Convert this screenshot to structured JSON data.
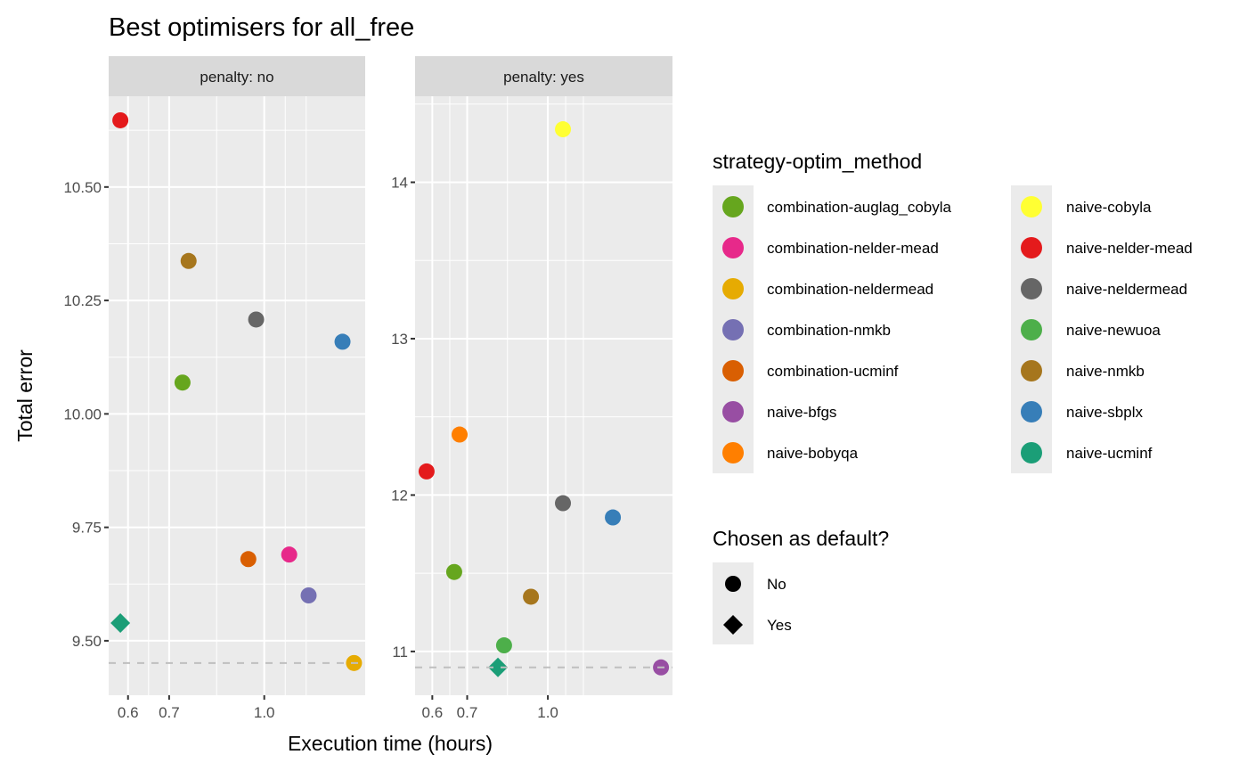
{
  "chart_data": {
    "type": "scatter",
    "title": "Best optimisers for all_free",
    "xlabel": "Execution time (hours)",
    "ylabel": "Total error",
    "x_scale": "log",
    "grid": true,
    "legend_placement": "right",
    "facets": [
      {
        "label": "penalty: no",
        "xlim": [
          0.558,
          1.46
        ],
        "ylim": [
          9.38,
          10.7
        ],
        "x_ticks": [
          "0.6",
          "0.7",
          "1.0"
        ],
        "x_tick_values": [
          0.6,
          0.7,
          1.0
        ],
        "y_ticks": [
          "9.50",
          "9.75",
          "10.00",
          "10.25",
          "10.50"
        ],
        "y_tick_values": [
          9.5,
          9.75,
          10.0,
          10.25,
          10.5
        ],
        "reference_line": 9.451,
        "points": [
          {
            "method": "naive-nelder-mead",
            "x": 0.583,
            "y": 10.647,
            "default": "No"
          },
          {
            "method": "naive-nmkb",
            "x": 0.753,
            "y": 10.337,
            "default": "No"
          },
          {
            "method": "naive-neldermead",
            "x": 0.97,
            "y": 10.208,
            "default": "No"
          },
          {
            "method": "naive-sbplx",
            "x": 1.341,
            "y": 10.159,
            "default": "No"
          },
          {
            "method": "combination-auglag_cobyla",
            "x": 0.736,
            "y": 10.069,
            "default": "No"
          },
          {
            "method": "combination-ucminf",
            "x": 0.942,
            "y": 9.68,
            "default": "No"
          },
          {
            "method": "combination-nelder-mead",
            "x": 1.098,
            "y": 9.69,
            "default": "No"
          },
          {
            "method": "combination-nmkb",
            "x": 1.181,
            "y": 9.6,
            "default": "No"
          },
          {
            "method": "naive-ucminf",
            "x": 0.583,
            "y": 9.539,
            "default": "Yes"
          },
          {
            "method": "combination-neldermead",
            "x": 1.4,
            "y": 9.451,
            "default": "No"
          }
        ]
      },
      {
        "label": "penalty: yes",
        "xlim": [
          0.556,
          1.735
        ],
        "ylim": [
          10.72,
          14.55
        ],
        "x_ticks": [
          "0.6",
          "0.7",
          "1.0"
        ],
        "x_tick_values": [
          0.6,
          0.7,
          1.0
        ],
        "y_ticks": [
          "11",
          "12",
          "13",
          "14"
        ],
        "y_tick_values": [
          11,
          12,
          13,
          14
        ],
        "reference_line": 10.898,
        "points": [
          {
            "method": "naive-cobyla",
            "x": 1.069,
            "y": 14.339,
            "default": "No"
          },
          {
            "method": "naive-bobyqa",
            "x": 0.677,
            "y": 12.387,
            "default": "No"
          },
          {
            "method": "naive-nelder-mead",
            "x": 0.585,
            "y": 12.151,
            "default": "No"
          },
          {
            "method": "naive-neldermead",
            "x": 1.069,
            "y": 11.948,
            "default": "No"
          },
          {
            "method": "naive-sbplx",
            "x": 1.333,
            "y": 11.857,
            "default": "No"
          },
          {
            "method": "combination-auglag_cobyla",
            "x": 0.661,
            "y": 11.508,
            "default": "No"
          },
          {
            "method": "naive-nmkb",
            "x": 0.928,
            "y": 11.35,
            "default": "No"
          },
          {
            "method": "naive-newuoa",
            "x": 0.824,
            "y": 11.039,
            "default": "No"
          },
          {
            "method": "naive-ucminf",
            "x": 0.802,
            "y": 10.898,
            "default": "Yes"
          },
          {
            "method": "naive-bfgs",
            "x": 1.649,
            "y": 10.898,
            "default": "No"
          }
        ]
      }
    ],
    "legend_color": {
      "title": "strategy-optim_method",
      "items": [
        {
          "label": "combination-auglag_cobyla",
          "color": "#66A61E"
        },
        {
          "label": "combination-nelder-mead",
          "color": "#E7298A"
        },
        {
          "label": "combination-neldermead",
          "color": "#E6AB02"
        },
        {
          "label": "combination-nmkb",
          "color": "#7570B3"
        },
        {
          "label": "combination-ucminf",
          "color": "#D95F02"
        },
        {
          "label": "naive-bfgs",
          "color": "#984EA3"
        },
        {
          "label": "naive-bobyqa",
          "color": "#FF7F00"
        },
        {
          "label": "naive-cobyla",
          "color": "#FFFF33"
        },
        {
          "label": "naive-nelder-mead",
          "color": "#E41A1C"
        },
        {
          "label": "naive-neldermead",
          "color": "#666666"
        },
        {
          "label": "naive-newuoa",
          "color": "#4DAF4A"
        },
        {
          "label": "naive-nmkb",
          "color": "#A6761D"
        },
        {
          "label": "naive-sbplx",
          "color": "#377EB8"
        },
        {
          "label": "naive-ucminf",
          "color": "#1B9E77"
        }
      ]
    },
    "legend_shape": {
      "title": "Chosen as default?",
      "items": [
        {
          "label": "No",
          "shape": "circle"
        },
        {
          "label": "Yes",
          "shape": "diamond"
        }
      ]
    }
  }
}
